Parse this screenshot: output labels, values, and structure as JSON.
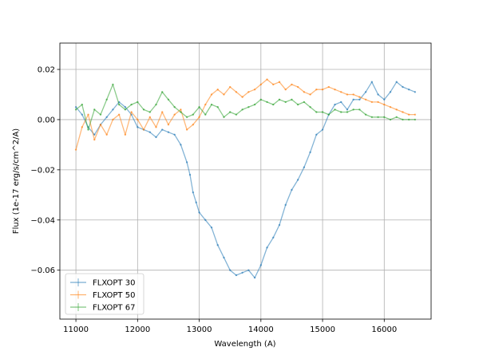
{
  "chart_data": {
    "type": "line",
    "title": "",
    "xlabel": "Wavelength (A)",
    "ylabel": "Flux (1e-17 erg/s/cm^2/A)",
    "xlim": [
      10740,
      16760
    ],
    "ylim": [
      -0.0795,
      0.0305
    ],
    "xticks": [
      11000,
      12000,
      13000,
      14000,
      15000,
      16000
    ],
    "yticks": [
      -0.06,
      -0.04,
      -0.02,
      0.0,
      0.02
    ],
    "xtick_labels": [
      "11000",
      "12000",
      "13000",
      "14000",
      "15000",
      "16000"
    ],
    "ytick_labels": [
      "−0.06",
      "−0.04",
      "−0.02",
      "0.00",
      "0.02"
    ],
    "grid": true,
    "legend_position": "lower-left",
    "series": [
      {
        "name": "FLXOPT 30",
        "color": "#1f77b4",
        "x": [
          11000,
          11100,
          11200,
          11300,
          11400,
          11500,
          11600,
          11700,
          11800,
          11900,
          12000,
          12100,
          12200,
          12300,
          12400,
          12500,
          12600,
          12700,
          12800,
          12850,
          12900,
          12950,
          13000,
          13100,
          13200,
          13300,
          13400,
          13500,
          13600,
          13700,
          13800,
          13900,
          14000,
          14100,
          14200,
          14300,
          14400,
          14500,
          14600,
          14700,
          14800,
          14900,
          15000,
          15100,
          15200,
          15300,
          15400,
          15500,
          15600,
          15700,
          15800,
          15900,
          16000,
          16100,
          16200,
          16300,
          16400,
          16500
        ],
        "y": [
          0.005,
          0.002,
          -0.003,
          -0.006,
          -0.002,
          0.001,
          0.004,
          0.007,
          0.005,
          0.002,
          -0.003,
          -0.004,
          -0.005,
          -0.007,
          -0.004,
          -0.005,
          -0.006,
          -0.01,
          -0.017,
          -0.022,
          -0.029,
          -0.033,
          -0.037,
          -0.04,
          -0.043,
          -0.05,
          -0.055,
          -0.06,
          -0.062,
          -0.061,
          -0.06,
          -0.063,
          -0.058,
          -0.051,
          -0.047,
          -0.042,
          -0.034,
          -0.028,
          -0.024,
          -0.019,
          -0.013,
          -0.006,
          -0.004,
          0.002,
          0.006,
          0.007,
          0.004,
          0.008,
          0.008,
          0.011,
          0.015,
          0.01,
          0.008,
          0.011,
          0.015,
          0.013,
          0.012,
          0.011
        ]
      },
      {
        "name": "FLXOPT 50",
        "color": "#ff7f0e",
        "x": [
          11000,
          11100,
          11200,
          11300,
          11400,
          11500,
          11600,
          11700,
          11800,
          11900,
          12000,
          12100,
          12200,
          12300,
          12400,
          12500,
          12600,
          12700,
          12800,
          12900,
          13000,
          13100,
          13200,
          13300,
          13400,
          13500,
          13600,
          13700,
          13800,
          13900,
          14000,
          14100,
          14200,
          14300,
          14400,
          14500,
          14600,
          14700,
          14800,
          14900,
          15000,
          15100,
          15200,
          15300,
          15400,
          15500,
          15600,
          15700,
          15800,
          15900,
          16000,
          16100,
          16200,
          16300,
          16400,
          16500
        ],
        "y": [
          -0.012,
          -0.003,
          0.002,
          -0.008,
          -0.002,
          -0.006,
          0.0,
          0.002,
          -0.006,
          0.003,
          0.0,
          -0.004,
          0.001,
          -0.003,
          0.003,
          -0.002,
          0.002,
          0.004,
          -0.004,
          -0.002,
          0.001,
          0.006,
          0.01,
          0.012,
          0.01,
          0.013,
          0.011,
          0.009,
          0.011,
          0.012,
          0.014,
          0.016,
          0.014,
          0.015,
          0.012,
          0.014,
          0.013,
          0.011,
          0.01,
          0.012,
          0.012,
          0.013,
          0.012,
          0.011,
          0.01,
          0.01,
          0.009,
          0.008,
          0.007,
          0.007,
          0.006,
          0.005,
          0.004,
          0.003,
          0.002,
          0.002
        ]
      },
      {
        "name": "FLXOPT 67",
        "color": "#2ca02c",
        "x": [
          11000,
          11100,
          11200,
          11300,
          11400,
          11500,
          11600,
          11700,
          11800,
          11900,
          12000,
          12100,
          12200,
          12300,
          12400,
          12500,
          12600,
          12700,
          12800,
          12900,
          13000,
          13100,
          13200,
          13300,
          13400,
          13500,
          13600,
          13700,
          13800,
          13900,
          14000,
          14100,
          14200,
          14300,
          14400,
          14500,
          14600,
          14700,
          14800,
          14900,
          15000,
          15100,
          15200,
          15300,
          15400,
          15500,
          15600,
          15700,
          15800,
          15900,
          16000,
          16100,
          16200,
          16300,
          16400,
          16500
        ],
        "y": [
          0.004,
          0.006,
          -0.004,
          0.004,
          0.002,
          0.008,
          0.014,
          0.006,
          0.004,
          0.006,
          0.007,
          0.004,
          0.003,
          0.006,
          0.011,
          0.008,
          0.005,
          0.003,
          0.001,
          0.002,
          0.005,
          0.002,
          0.006,
          0.005,
          0.001,
          0.003,
          0.002,
          0.004,
          0.005,
          0.006,
          0.008,
          0.007,
          0.006,
          0.008,
          0.007,
          0.008,
          0.006,
          0.007,
          0.005,
          0.003,
          0.003,
          0.002,
          0.004,
          0.003,
          0.003,
          0.004,
          0.004,
          0.002,
          0.001,
          0.001,
          0.001,
          0.0,
          0.001,
          0.0,
          0.0,
          0.0
        ]
      }
    ]
  }
}
